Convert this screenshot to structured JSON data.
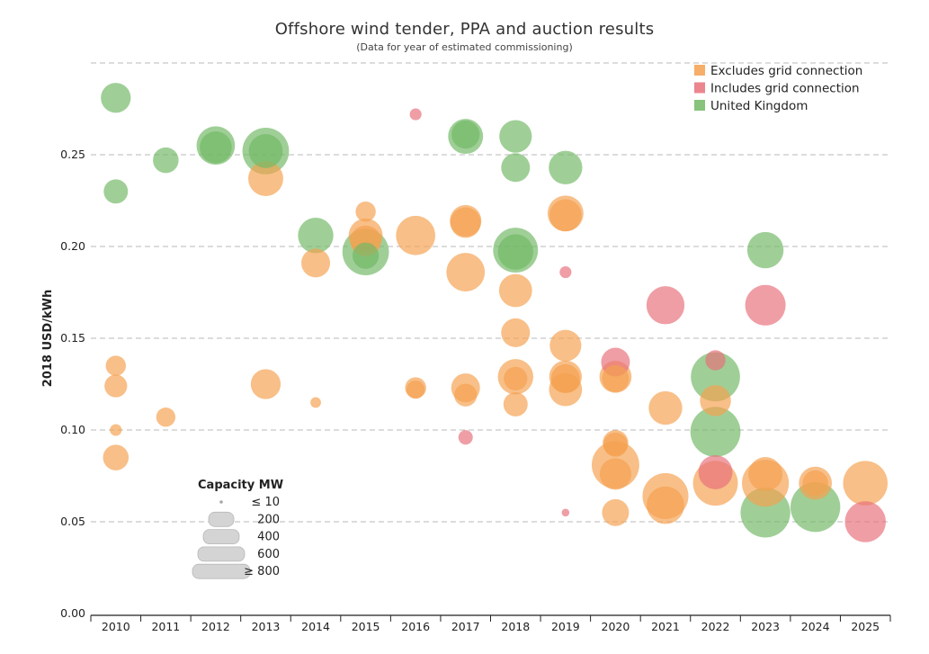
{
  "chart_data": {
    "type": "scatter",
    "title": "Offshore wind tender, PPA and auction results",
    "subtitle": "(Data for year of estimated commissioning)",
    "ylabel": "2018 USD/kWh",
    "xlabel": "",
    "categories": [
      "2010",
      "2011",
      "2012",
      "2013",
      "2014",
      "2015",
      "2016",
      "2017",
      "2018",
      "2019",
      "2020",
      "2021",
      "2022",
      "2023",
      "2024",
      "2025"
    ],
    "ylim": [
      0,
      0.3
    ],
    "yticks": [
      "0.00",
      "0.05",
      "0.10",
      "0.15",
      "0.20",
      "0.25"
    ],
    "yticks_values": [
      0,
      0.05,
      0.1,
      0.15,
      0.2,
      0.25
    ],
    "grid": "horizontal dashed",
    "legend_position": "top-right",
    "series": [
      {
        "name": "Excludes grid connection",
        "color": "#f5a04f",
        "points": [
          {
            "x": "2010",
            "y": 0.135,
            "mw": 80
          },
          {
            "x": "2010",
            "y": 0.124,
            "mw": 110
          },
          {
            "x": "2010",
            "y": 0.1,
            "mw": 15
          },
          {
            "x": "2010",
            "y": 0.085,
            "mw": 150
          },
          {
            "x": "2011",
            "y": 0.107,
            "mw": 70
          },
          {
            "x": "2013",
            "y": 0.237,
            "mw": 320
          },
          {
            "x": "2013",
            "y": 0.125,
            "mw": 220
          },
          {
            "x": "2014",
            "y": 0.191,
            "mw": 200
          },
          {
            "x": "2014",
            "y": 0.115,
            "mw": 10
          },
          {
            "x": "2015",
            "y": 0.219,
            "mw": 80
          },
          {
            "x": "2015",
            "y": 0.206,
            "mw": 300
          },
          {
            "x": "2015",
            "y": 0.203,
            "mw": 240
          },
          {
            "x": "2016",
            "y": 0.206,
            "mw": 420
          },
          {
            "x": "2016",
            "y": 0.123,
            "mw": 90
          },
          {
            "x": "2016",
            "y": 0.122,
            "mw": 60
          },
          {
            "x": "2017",
            "y": 0.214,
            "mw": 250
          },
          {
            "x": "2017",
            "y": 0.213,
            "mw": 230
          },
          {
            "x": "2017",
            "y": 0.186,
            "mw": 400
          },
          {
            "x": "2017",
            "y": 0.123,
            "mw": 200
          },
          {
            "x": "2017",
            "y": 0.119,
            "mw": 110
          },
          {
            "x": "2018",
            "y": 0.176,
            "mw": 280
          },
          {
            "x": "2018",
            "y": 0.153,
            "mw": 200
          },
          {
            "x": "2018",
            "y": 0.129,
            "mw": 330
          },
          {
            "x": "2018",
            "y": 0.128,
            "mw": 120
          },
          {
            "x": "2018",
            "y": 0.114,
            "mw": 130
          },
          {
            "x": "2019",
            "y": 0.218,
            "mw": 340
          },
          {
            "x": "2019",
            "y": 0.217,
            "mw": 260
          },
          {
            "x": "2019",
            "y": 0.146,
            "mw": 250
          },
          {
            "x": "2019",
            "y": 0.129,
            "mw": 270
          },
          {
            "x": "2019",
            "y": 0.128,
            "mw": 200
          },
          {
            "x": "2019",
            "y": 0.122,
            "mw": 280
          },
          {
            "x": "2020",
            "y": 0.129,
            "mw": 260
          },
          {
            "x": "2020",
            "y": 0.128,
            "mw": 170
          },
          {
            "x": "2020",
            "y": 0.093,
            "mw": 150
          },
          {
            "x": "2020",
            "y": 0.092,
            "mw": 130
          },
          {
            "x": "2020",
            "y": 0.081,
            "mw": 650
          },
          {
            "x": "2020",
            "y": 0.076,
            "mw": 250
          },
          {
            "x": "2020",
            "y": 0.055,
            "mw": 170
          },
          {
            "x": "2021",
            "y": 0.112,
            "mw": 290
          },
          {
            "x": "2021",
            "y": 0.064,
            "mw": 600
          },
          {
            "x": "2021",
            "y": 0.059,
            "mw": 380
          },
          {
            "x": "2022",
            "y": 0.116,
            "mw": 240
          },
          {
            "x": "2022",
            "y": 0.071,
            "mw": 570
          },
          {
            "x": "2023",
            "y": 0.076,
            "mw": 300
          },
          {
            "x": "2023",
            "y": 0.071,
            "mw": 630
          },
          {
            "x": "2024",
            "y": 0.071,
            "mw": 280
          },
          {
            "x": "2024",
            "y": 0.071,
            "mw": 150
          },
          {
            "x": "2025",
            "y": 0.071,
            "mw": 560
          }
        ]
      },
      {
        "name": "Includes grid connection",
        "color": "#e8707a",
        "points": [
          {
            "x": "2016",
            "y": 0.272,
            "mw": 15
          },
          {
            "x": "2017",
            "y": 0.096,
            "mw": 30
          },
          {
            "x": "2019",
            "y": 0.186,
            "mw": 15
          },
          {
            "x": "2019",
            "y": 0.055,
            "mw": 2
          },
          {
            "x": "2020",
            "y": 0.137,
            "mw": 200
          },
          {
            "x": "2021",
            "y": 0.168,
            "mw": 390
          },
          {
            "x": "2022",
            "y": 0.138,
            "mw": 80
          },
          {
            "x": "2022",
            "y": 0.077,
            "mw": 300
          },
          {
            "x": "2023",
            "y": 0.168,
            "mw": 450
          },
          {
            "x": "2025",
            "y": 0.05,
            "mw": 460
          }
        ]
      },
      {
        "name": "United Kingdom",
        "color": "#72b865",
        "points": [
          {
            "x": "2010",
            "y": 0.281,
            "mw": 220
          },
          {
            "x": "2010",
            "y": 0.23,
            "mw": 130
          },
          {
            "x": "2011",
            "y": 0.247,
            "mw": 150
          },
          {
            "x": "2012",
            "y": 0.255,
            "mw": 400
          },
          {
            "x": "2012",
            "y": 0.254,
            "mw": 260
          },
          {
            "x": "2013",
            "y": 0.252,
            "mw": 620
          },
          {
            "x": "2013",
            "y": 0.252,
            "mw": 300
          },
          {
            "x": "2014",
            "y": 0.206,
            "mw": 330
          },
          {
            "x": "2015",
            "y": 0.197,
            "mw": 620
          },
          {
            "x": "2015",
            "y": 0.195,
            "mw": 160
          },
          {
            "x": "2017",
            "y": 0.26,
            "mw": 320
          },
          {
            "x": "2017",
            "y": 0.261,
            "mw": 190
          },
          {
            "x": "2018",
            "y": 0.26,
            "mw": 270
          },
          {
            "x": "2018",
            "y": 0.243,
            "mw": 200
          },
          {
            "x": "2018",
            "y": 0.198,
            "mw": 570
          },
          {
            "x": "2018",
            "y": 0.197,
            "mw": 330
          },
          {
            "x": "2019",
            "y": 0.243,
            "mw": 290
          },
          {
            "x": "2022",
            "y": 0.129,
            "mw": 700
          },
          {
            "x": "2022",
            "y": 0.099,
            "mw": 730
          },
          {
            "x": "2023",
            "y": 0.198,
            "mw": 350
          },
          {
            "x": "2023",
            "y": 0.055,
            "mw": 720
          },
          {
            "x": "2024",
            "y": 0.058,
            "mw": 720
          }
        ]
      }
    ],
    "size_legend": {
      "title": "Capacity MW",
      "labels": [
        "≤ 10",
        "200",
        "400",
        "600",
        "≥ 800"
      ],
      "values": [
        10,
        200,
        400,
        600,
        800
      ]
    }
  }
}
